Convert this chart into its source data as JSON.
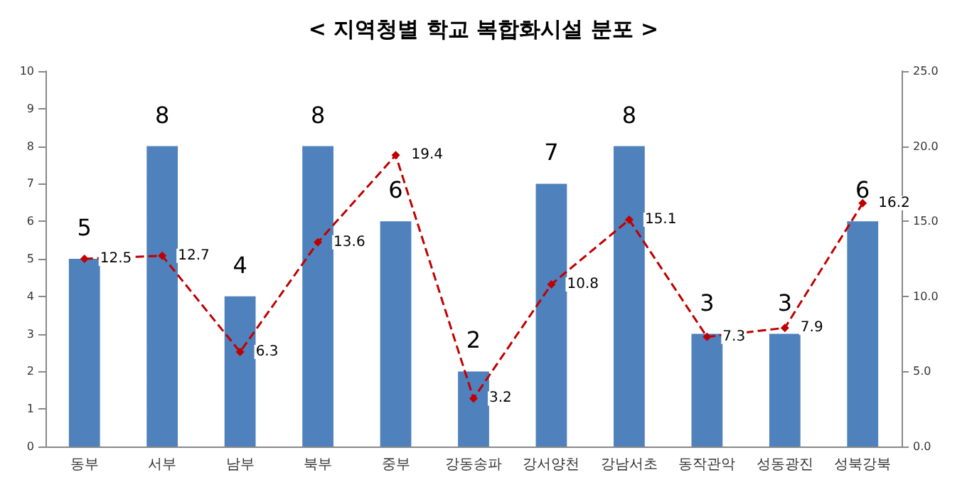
{
  "chart_data": {
    "type": "bar",
    "title": "< 지역청별 학교 복합화시설 분포 >",
    "categories": [
      "동부",
      "서부",
      "남부",
      "북부",
      "중부",
      "강동송파",
      "강서양천",
      "강남서초",
      "동작관악",
      "성동광진",
      "성북강북"
    ],
    "series": [
      {
        "color": "#4f81bd",
        "values": [
          5,
          8,
          4,
          8,
          6,
          2,
          7,
          8,
          3,
          3,
          6
        ]
      },
      {
        "type": "line",
        "axis": "y2",
        "color": "#c00000",
        "marker": "diamond",
        "line_style": "dashed",
        "values": [
          12.5,
          12.7,
          6.3,
          13.6,
          19.4,
          3.2,
          10.8,
          15.1,
          7.3,
          7.9,
          16.2
        ]
      }
    ],
    "ylim": [
      0,
      10
    ],
    "yticks": [
      0,
      1,
      2,
      3,
      4,
      5,
      6,
      7,
      8,
      9,
      10
    ],
    "y2lim": [
      0,
      25
    ],
    "y2ticks": [
      {
        "value": 0,
        "label": "0.0"
      },
      {
        "value": 5,
        "label": "5.0"
      },
      {
        "value": 10,
        "label": "10.0"
      },
      {
        "value": 15,
        "label": "15.0"
      },
      {
        "value": 20,
        "label": "20.0"
      },
      {
        "value": 25,
        "label": "25.0"
      }
    ],
    "data_labels": true,
    "grid": false
  }
}
